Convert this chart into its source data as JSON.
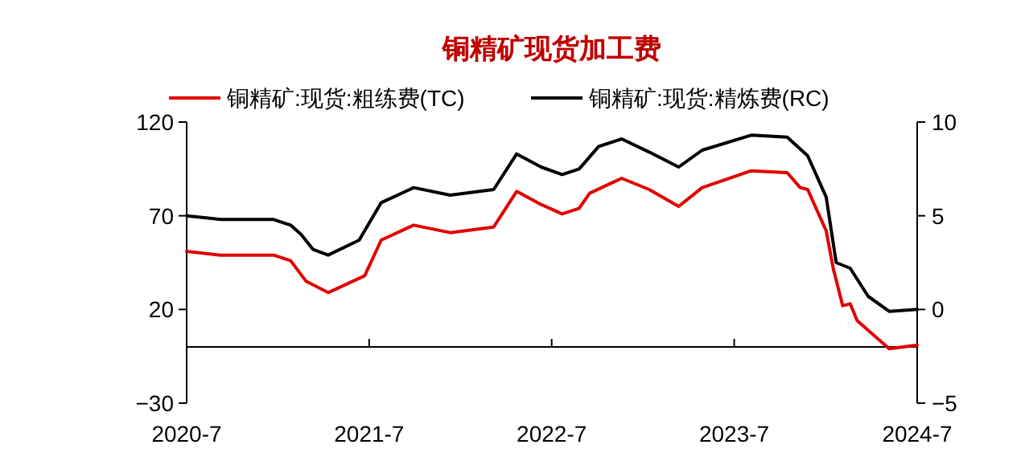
{
  "chart_data": {
    "type": "line",
    "title": "铜精矿现货加工费",
    "legend": "top",
    "grid": false,
    "line_style": "solid",
    "marker": "none",
    "xlim": [
      "2020-07",
      "2024-07"
    ],
    "xticks": [
      {
        "value": "2020-07",
        "label": "2020-7"
      },
      {
        "value": "2021-07",
        "label": "2021-7"
      },
      {
        "value": "2022-07",
        "label": "2022-7"
      },
      {
        "value": "2023-07",
        "label": "2023-7"
      },
      {
        "value": "2024-07",
        "label": "2024-7"
      }
    ],
    "ylim": [
      -30,
      120
    ],
    "yticks": [
      {
        "value": -30,
        "label": "−30"
      },
      20,
      70,
      120
    ],
    "y2lim": [
      -5,
      10
    ],
    "y2ticks": [
      {
        "value": -5,
        "label": "−5"
      },
      0,
      5,
      10
    ],
    "series": [
      {
        "name": "铜精矿:现货:粗练费(TC)",
        "color": "#e00000",
        "x": [
          "2020-07-01",
          "2020-09-07",
          "2020-12-22",
          "2021-01-25",
          "2021-02-25",
          "2021-04-10",
          "2021-06-22",
          "2021-07-25",
          "2021-09-28",
          "2021-12-10",
          "2022-03-07",
          "2022-04-22",
          "2022-06-10",
          "2022-07-22",
          "2022-08-25",
          "2022-09-15",
          "2022-11-18",
          "2023-01-12",
          "2023-03-12",
          "2023-04-28",
          "2023-08-04",
          "2023-10-15",
          "2023-11-10",
          "2023-11-25",
          "2024-01-01",
          "2024-01-15",
          "2024-02-03",
          "2024-02-18",
          "2024-03-03",
          "2024-05-06",
          "2024-07-01"
        ],
        "values": [
          51,
          49,
          49,
          46,
          35,
          29,
          38,
          57,
          65,
          61,
          64,
          83,
          76,
          71,
          74,
          82,
          90,
          84,
          75,
          85,
          94,
          93,
          85,
          84,
          62,
          42,
          22,
          23,
          14,
          -1,
          1
        ]
      },
      {
        "name": "铜精矿:现货:精炼费(RC)",
        "color": "#000000",
        "axis": "y2",
        "x": [
          "2020-07-01",
          "2020-09-07",
          "2020-12-22",
          "2021-01-25",
          "2021-02-15",
          "2021-03-11",
          "2021-04-10",
          "2021-06-11",
          "2021-07-25",
          "2021-09-28",
          "2021-12-10",
          "2022-03-07",
          "2022-04-22",
          "2022-06-10",
          "2022-07-22",
          "2022-08-25",
          "2022-10-03",
          "2022-11-18",
          "2023-01-12",
          "2023-03-12",
          "2023-04-28",
          "2023-08-04",
          "2023-10-15",
          "2023-11-25",
          "2024-01-01",
          "2024-01-21",
          "2024-02-18",
          "2024-03-25",
          "2024-05-06",
          "2024-07-01"
        ],
        "values": [
          5.0,
          4.8,
          4.8,
          4.5,
          4.0,
          3.2,
          2.9,
          3.7,
          5.7,
          6.5,
          6.1,
          6.4,
          8.3,
          7.6,
          7.2,
          7.5,
          8.7,
          9.1,
          8.4,
          7.6,
          8.5,
          9.3,
          9.2,
          8.2,
          6.0,
          2.5,
          2.2,
          0.7,
          -0.1,
          0.0
        ]
      }
    ]
  }
}
